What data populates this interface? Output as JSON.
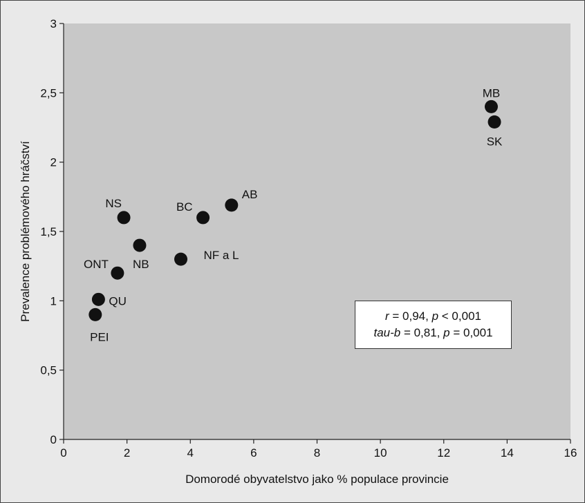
{
  "chart_data": {
    "type": "scatter",
    "xlabel": "Domorodé obyvatelstvo jako % populace provincie",
    "ylabel": "Prevalence problémového hráčství",
    "xlim": [
      0,
      16
    ],
    "ylim": [
      0,
      3
    ],
    "x_ticks": [
      "0",
      "2",
      "4",
      "6",
      "8",
      "10",
      "12",
      "14",
      "16"
    ],
    "y_ticks": [
      "0",
      "0,5",
      "1",
      "1,5",
      "2",
      "2,5",
      "3"
    ],
    "grid": false,
    "plot_background": "#c8c8c8",
    "page_background": "#e9e9e9",
    "marker_color": "#111111",
    "points": [
      {
        "label": "MB",
        "x": 13.5,
        "y": 2.4
      },
      {
        "label": "SK",
        "x": 13.6,
        "y": 2.29
      },
      {
        "label": "AB",
        "x": 5.3,
        "y": 1.69
      },
      {
        "label": "BC",
        "x": 4.4,
        "y": 1.6
      },
      {
        "label": "NS",
        "x": 1.9,
        "y": 1.6
      },
      {
        "label": "NB",
        "x": 2.4,
        "y": 1.4
      },
      {
        "label": "NF a L",
        "x": 3.7,
        "y": 1.3
      },
      {
        "label": "ONT",
        "x": 1.7,
        "y": 1.2
      },
      {
        "label": "QU",
        "x": 1.1,
        "y": 1.01
      },
      {
        "label": "PEI",
        "x": 1.0,
        "y": 0.9
      }
    ],
    "annotation": {
      "line1": {
        "var": "r",
        "eq": " = 0,94, ",
        "pvar": "p",
        "rest": " < 0,001"
      },
      "line2": {
        "var": "tau-b",
        "eq": " = 0,81, ",
        "pvar": "p",
        "rest": " = 0,001"
      }
    }
  }
}
